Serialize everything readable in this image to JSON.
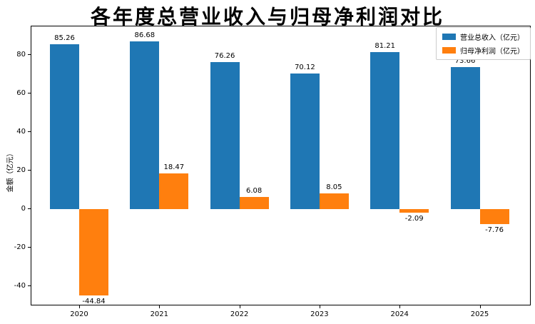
{
  "title": "各年度总营业收入与归母净利润对比",
  "chart_data": {
    "type": "bar",
    "title": "各年度总营业收入与归母净利润对比",
    "categories": [
      "2020",
      "2021",
      "2022",
      "2023",
      "2024",
      "2025"
    ],
    "series": [
      {
        "name": "营业总收入（亿元）",
        "color": "#1f77b4",
        "values": [
          85.26,
          86.68,
          76.26,
          70.12,
          81.21,
          73.66
        ]
      },
      {
        "name": "归母净利润（亿元）",
        "color": "#ff7f0e",
        "values": [
          -44.84,
          18.47,
          6.08,
          8.05,
          -2.09,
          -7.76
        ]
      }
    ],
    "xlabel": "",
    "ylabel": "金额（亿元）",
    "ylim": [
      -50,
      95
    ],
    "yticks": [
      80,
      60,
      40,
      20,
      0,
      -20,
      -40
    ],
    "grid": false,
    "legend_position": "upper right",
    "bar_value_labels": true,
    "value_label_format": "2dp"
  }
}
